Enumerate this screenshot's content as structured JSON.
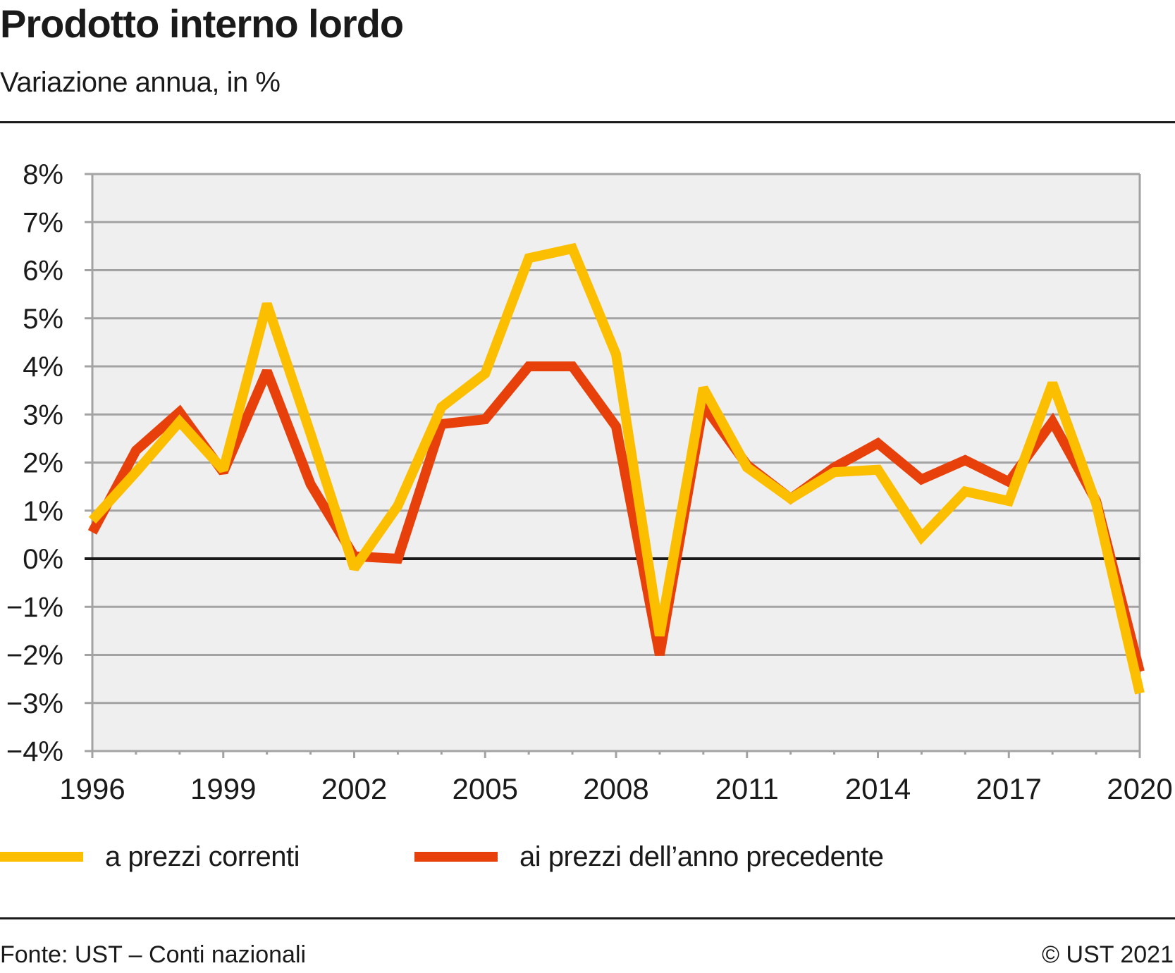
{
  "header": {
    "title": "Prodotto interno lordo",
    "subtitle": "Variazione annua, in %"
  },
  "chart_data": {
    "type": "line",
    "title": "Prodotto interno lordo",
    "subtitle": "Variazione annua, in %",
    "xlabel": "",
    "ylabel": "",
    "x": [
      1996,
      1997,
      1998,
      1999,
      2000,
      2001,
      2002,
      2003,
      2004,
      2005,
      2006,
      2007,
      2008,
      2009,
      2010,
      2011,
      2012,
      2013,
      2014,
      2015,
      2016,
      2017,
      2018,
      2019,
      2020
    ],
    "xlim": [
      1996,
      2020
    ],
    "ylim": [
      -4,
      8
    ],
    "x_ticks": [
      "1996",
      "1999",
      "2002",
      "2005",
      "2008",
      "2011",
      "2014",
      "2017",
      "2020"
    ],
    "x_tick_values": [
      1996,
      1999,
      2002,
      2005,
      2008,
      2011,
      2014,
      2017,
      2020
    ],
    "y_ticks": [
      "8%",
      "7%",
      "6%",
      "5%",
      "4%",
      "3%",
      "2%",
      "1%",
      "0%",
      "−1%",
      "−2%",
      "−3%",
      "−4%"
    ],
    "y_tick_values": [
      8,
      7,
      6,
      5,
      4,
      3,
      2,
      1,
      0,
      -1,
      -2,
      -3,
      -4
    ],
    "grid": true,
    "legend_position": "bottom",
    "series": [
      {
        "name": "a prezzi correnti",
        "color": "#fcbf00",
        "values": [
          0.8,
          1.8,
          2.85,
          1.85,
          5.3,
          2.6,
          -0.2,
          1.1,
          3.15,
          3.85,
          6.25,
          6.45,
          4.25,
          -1.6,
          3.55,
          1.9,
          1.25,
          1.8,
          1.85,
          0.45,
          1.4,
          1.2,
          3.65,
          1.15,
          -2.8
        ]
      },
      {
        "name": "ai prezzi dell’anno precedente",
        "color": "#e8400a",
        "values": [
          0.55,
          2.25,
          3.05,
          1.8,
          3.9,
          1.55,
          0.05,
          0.0,
          2.8,
          2.9,
          4.0,
          4.0,
          2.75,
          -2.0,
          3.2,
          1.95,
          1.25,
          1.9,
          2.4,
          1.65,
          2.05,
          1.6,
          2.85,
          1.2,
          -2.35
        ]
      }
    ]
  },
  "legend": {
    "items": [
      {
        "label": "a prezzi correnti",
        "color": "#fcbf00"
      },
      {
        "label": "ai prezzi dell’anno precedente",
        "color": "#e8400a"
      }
    ]
  },
  "footer": {
    "source": "Fonte: UST – Conti nazionali",
    "copyright": "© UST 2021"
  },
  "colors": {
    "plot_background": "#efefef",
    "grid": "#a3a3a3",
    "zero_line": "#1a1a1a",
    "text": "#1a1a1a"
  }
}
